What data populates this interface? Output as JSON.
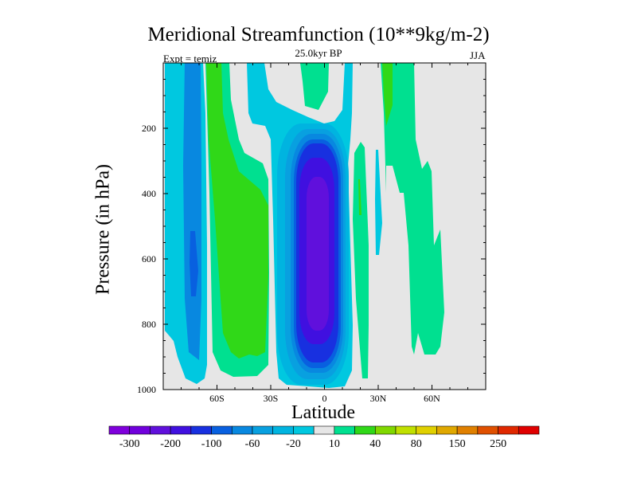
{
  "chart_data": {
    "type": "heatmap",
    "subtype": "filled-contour",
    "title": "Meridional Streamfunction (10**9kg/m-2)",
    "subtitle": "25.0kyr BP",
    "annotation_left": "Expt = temiz",
    "annotation_right": "JJA",
    "xlabel": "Latitude",
    "ylabel": "Pressure (in hPa)",
    "xlim": [
      -90,
      90
    ],
    "ylim": [
      0,
      1000
    ],
    "y_inverted": true,
    "x_ticks": [
      {
        "value": -60,
        "label": "60S"
      },
      {
        "value": -30,
        "label": "30S"
      },
      {
        "value": 0,
        "label": "0"
      },
      {
        "value": 30,
        "label": "30N"
      },
      {
        "value": 60,
        "label": "60N"
      }
    ],
    "y_ticks": [
      {
        "value": 200,
        "label": "200"
      },
      {
        "value": 400,
        "label": "400"
      },
      {
        "value": 600,
        "label": "600"
      },
      {
        "value": 800,
        "label": "800"
      },
      {
        "value": 1000,
        "label": "1000"
      }
    ],
    "colorbar": {
      "orientation": "horizontal",
      "placement": "bottom",
      "colors": [
        "#7f00dc",
        "#7000dc",
        "#6010dc",
        "#4010e0",
        "#1830e0",
        "#0860e0",
        "#0888e0",
        "#08a0e0",
        "#00b4e0",
        "#00c8e0",
        "#e6e6e6",
        "#00e090",
        "#30d818",
        "#80d800",
        "#c0e000",
        "#e0d000",
        "#e0a800",
        "#e08000",
        "#e05000",
        "#e02800",
        "#e00000"
      ],
      "labels": [
        {
          "boundary": 1,
          "label": "-300"
        },
        {
          "boundary": 3,
          "label": "-200"
        },
        {
          "boundary": 5,
          "label": "-100"
        },
        {
          "boundary": 7,
          "label": "-60"
        },
        {
          "boundary": 9,
          "label": "-20"
        },
        {
          "boundary": 11,
          "label": "10"
        },
        {
          "boundary": 13,
          "label": "40"
        },
        {
          "boundary": 15,
          "label": "80"
        },
        {
          "boundary": 17,
          "label": "150"
        },
        {
          "boundary": 19,
          "label": "250"
        }
      ]
    },
    "features": [
      {
        "name": "Equatorial negative cell",
        "lat_range": [
          -25,
          15
        ],
        "min_level": -200
      },
      {
        "name": "Southern positive cell",
        "lat_range": [
          -65,
          -30
        ],
        "max_level": 40
      },
      {
        "name": "Southern high-latitude negative cell",
        "lat_range": [
          -88,
          -65
        ],
        "min_level": -100
      },
      {
        "name": "Northern positive cells",
        "lat_range": [
          20,
          70
        ],
        "max_level": 40
      }
    ]
  }
}
